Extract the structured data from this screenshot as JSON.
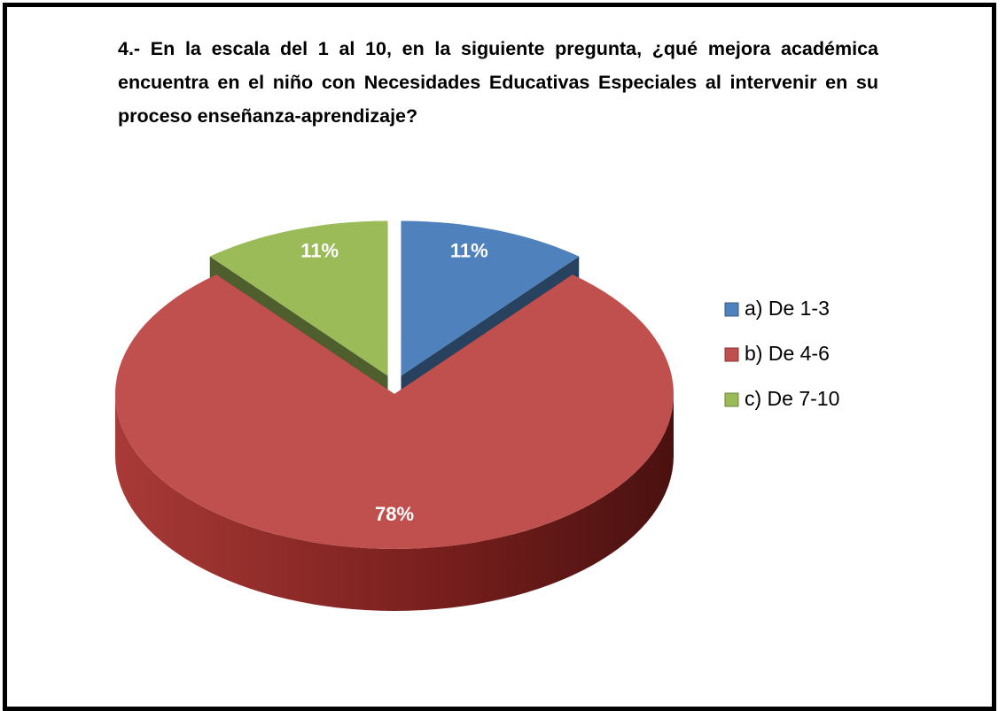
{
  "chart_data": {
    "type": "pie",
    "title": "4.- En la escala del 1 al 10, en la siguiente pregunta, ¿qué mejora académica encuentra en el niño con Necesidades Educativas Especiales al intervenir en su proceso enseñanza-aprendizaje?",
    "categories": [
      "a) De 1-3",
      "b) De 4-6",
      "c) De 7-10"
    ],
    "values": [
      11,
      78,
      11
    ],
    "value_labels": [
      "11%",
      "78%",
      "11%"
    ],
    "colors": [
      "#4f81bd",
      "#c0504d",
      "#9bbb59"
    ],
    "legend": "right"
  }
}
